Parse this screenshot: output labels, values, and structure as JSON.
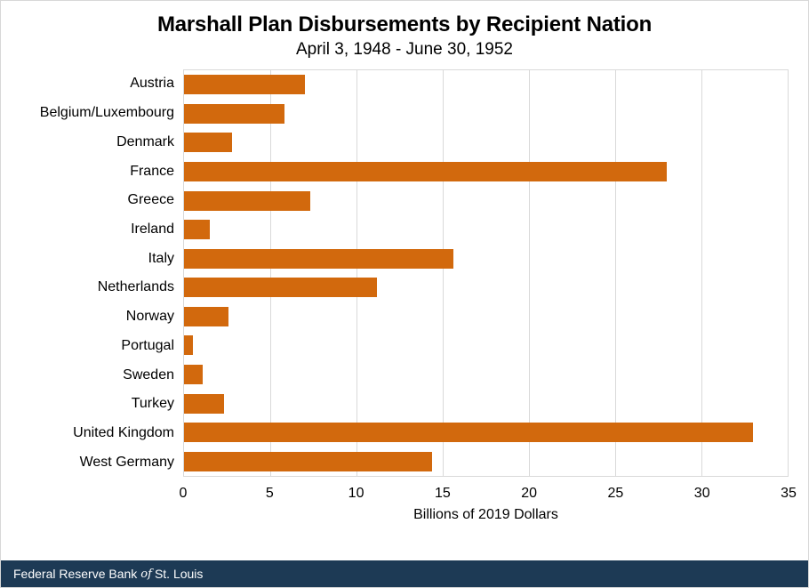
{
  "header": {
    "title": "Marshall Plan Disbursements by Recipient Nation",
    "subtitle": "April 3, 1948 - June 30, 1952"
  },
  "chart_data": {
    "type": "bar",
    "orientation": "horizontal",
    "title": "Marshall Plan Disbursements by Recipient Nation",
    "subtitle": "April 3, 1948 - June 30, 1952",
    "categories": [
      "Austria",
      "Belgium/Luxembourg",
      "Denmark",
      "France",
      "Greece",
      "Ireland",
      "Italy",
      "Netherlands",
      "Norway",
      "Portugal",
      "Sweden",
      "Turkey",
      "United Kingdom",
      "West Germany"
    ],
    "values": [
      7.0,
      5.8,
      2.8,
      28.0,
      7.3,
      1.5,
      15.6,
      11.2,
      2.6,
      0.5,
      1.1,
      2.3,
      33.0,
      14.4
    ],
    "xlabel": "Billions of 2019 Dollars",
    "ylabel": "",
    "xlim": [
      0,
      35
    ],
    "xticks": [
      0,
      5,
      10,
      15,
      20,
      25,
      30,
      35
    ],
    "grid": "vertical",
    "legend": "none",
    "bar_color": "#d2690d",
    "grid_color": "#d9d9d9"
  },
  "footer": {
    "brand_prefix": "Federal Reserve Bank",
    "brand_of": "of",
    "brand_suffix": "St. Louis",
    "bg_color": "#1d3a55"
  }
}
